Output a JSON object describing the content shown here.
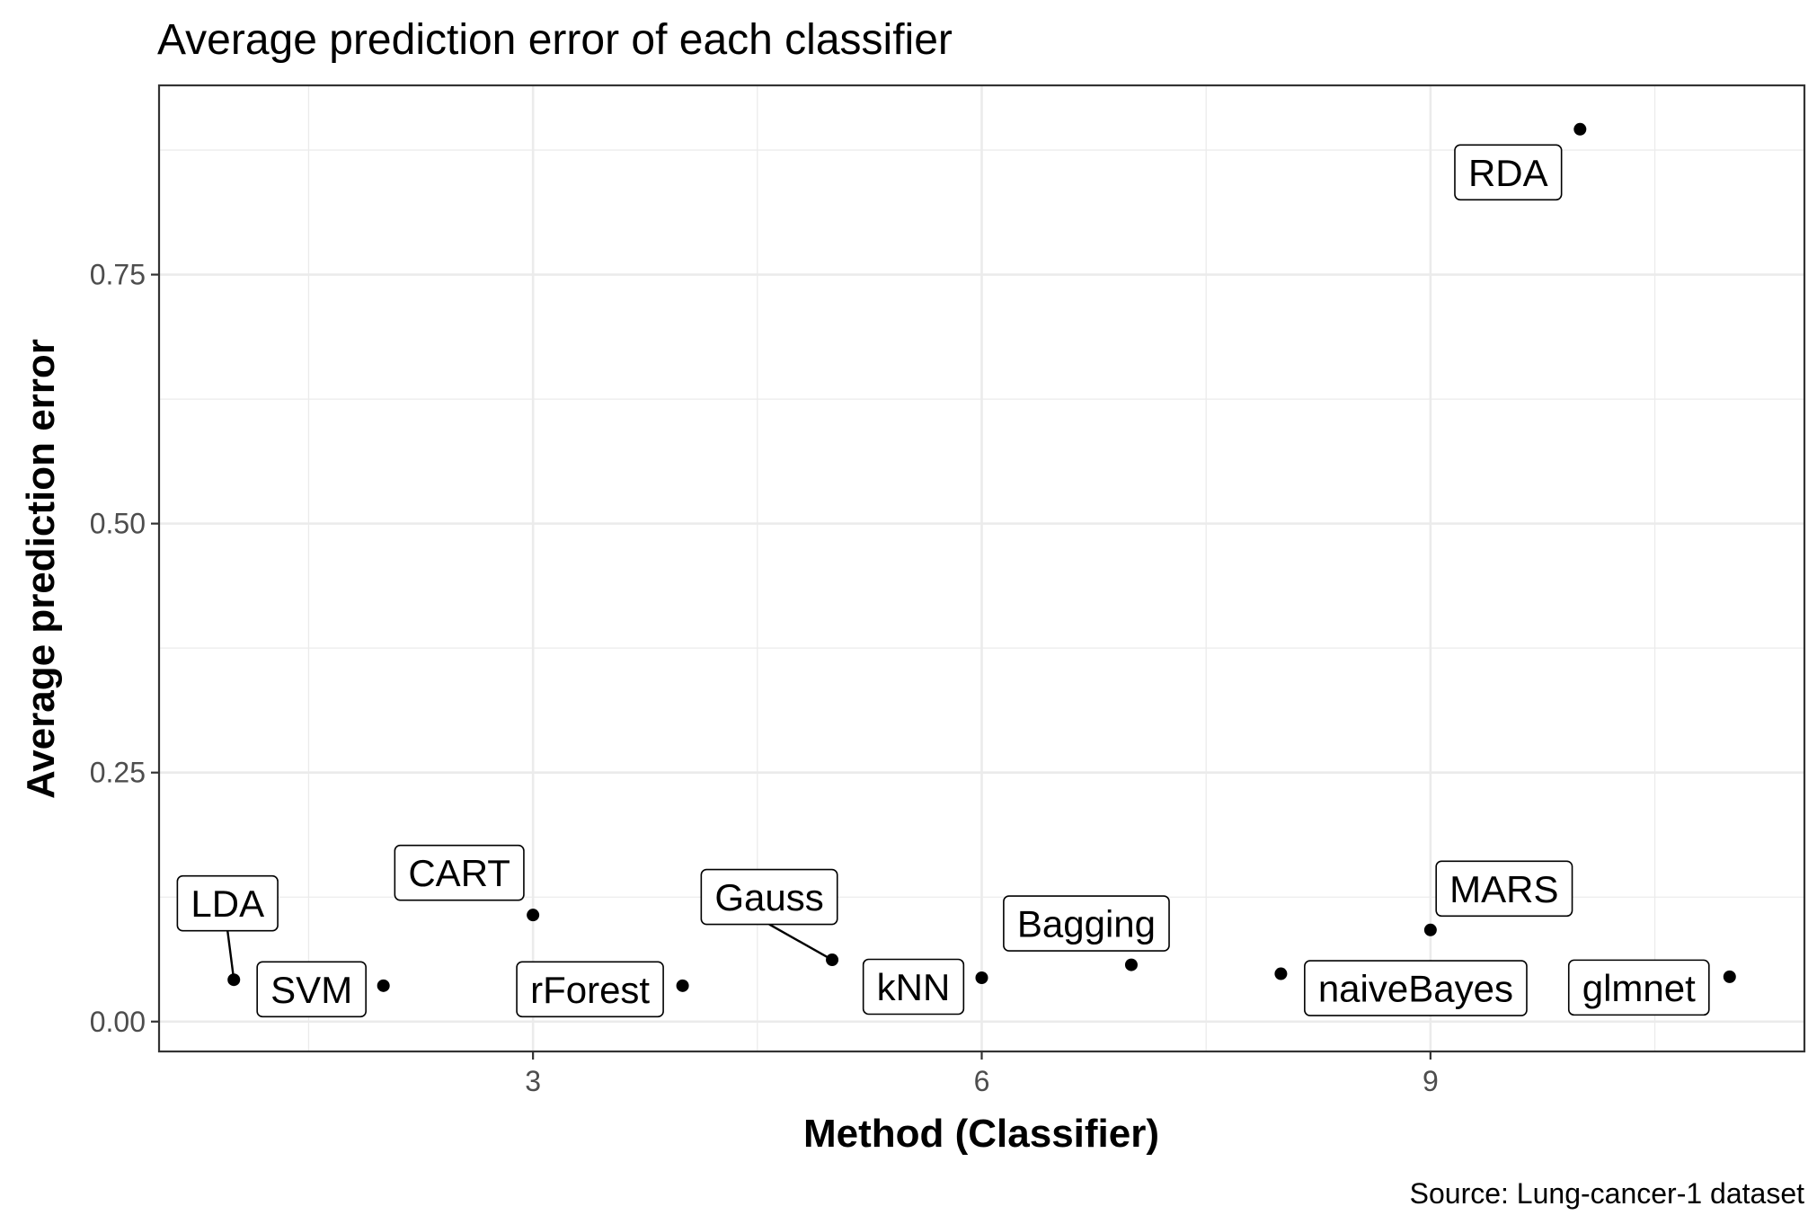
{
  "chart_data": {
    "type": "scatter",
    "title": "Average prediction error of each classifier",
    "xlabel": "Method (Classifier)",
    "ylabel": "Average prediction error",
    "caption": "Source: Lung-cancer-1 dataset",
    "xlim": [
      0.5,
      11.5
    ],
    "ylim": [
      -0.03,
      0.94
    ],
    "x_ticks": [
      3,
      6,
      9
    ],
    "x_tick_labels": [
      "3",
      "6",
      "9"
    ],
    "y_ticks": [
      0,
      0.25,
      0.5,
      0.75
    ],
    "y_tick_labels": [
      "0.00",
      "0.25",
      "0.50",
      "0.75"
    ],
    "grid": true,
    "legend": "none",
    "point_color": "#000000",
    "points": [
      {
        "x": 1,
        "y": 0.042,
        "label": "LDA"
      },
      {
        "x": 2,
        "y": 0.036,
        "label": "SVM"
      },
      {
        "x": 3,
        "y": 0.107,
        "label": "CART"
      },
      {
        "x": 4,
        "y": 0.036,
        "label": "rForest"
      },
      {
        "x": 5,
        "y": 0.062,
        "label": "Gauss"
      },
      {
        "x": 6,
        "y": 0.044,
        "label": "kNN"
      },
      {
        "x": 7,
        "y": 0.057,
        "label": "Bagging"
      },
      {
        "x": 8,
        "y": 0.048,
        "label": "naiveBayes"
      },
      {
        "x": 9,
        "y": 0.092,
        "label": "MARS"
      },
      {
        "x": 10,
        "y": 0.896,
        "label": "RDA"
      },
      {
        "x": 11,
        "y": 0.045,
        "label": "glmnet"
      }
    ]
  }
}
